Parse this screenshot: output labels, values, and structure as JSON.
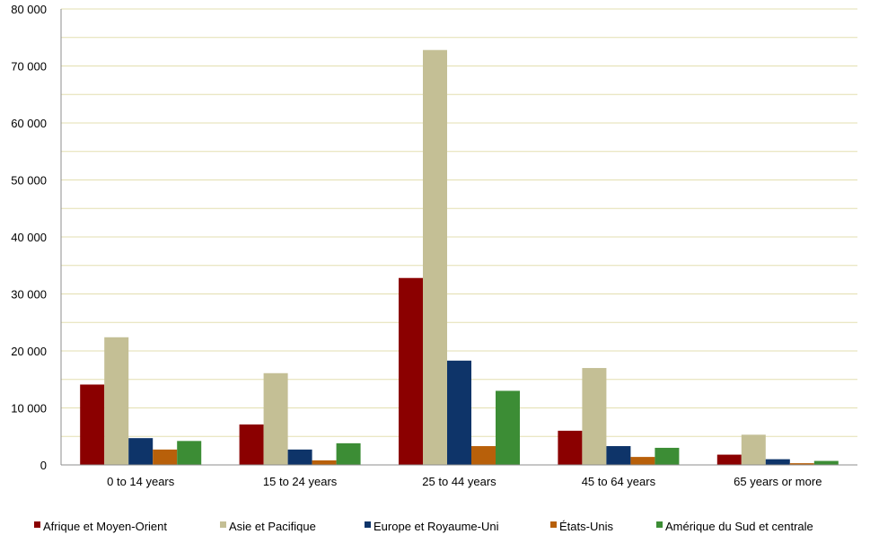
{
  "chart_data": {
    "type": "bar",
    "categories": [
      "0 to 14 years",
      "15 to 24 years",
      "25 to 44 years",
      "45 to 64 years",
      "65 years or more"
    ],
    "series": [
      {
        "name": "Afrique et Moyen-Orient",
        "color": "#8b0000",
        "values": [
          14100,
          7100,
          32800,
          6000,
          1800
        ]
      },
      {
        "name": "Asie et Pacifique",
        "color": "#c4bf95",
        "values": [
          22400,
          16100,
          72800,
          17000,
          5300
        ]
      },
      {
        "name": "Europe et Royaume-Uni",
        "color": "#0e3469",
        "values": [
          4700,
          2700,
          18300,
          3300,
          1000
        ]
      },
      {
        "name": "États-Unis",
        "color": "#b8600a",
        "values": [
          2700,
          800,
          3300,
          1400,
          300
        ]
      },
      {
        "name": "Amérique du Sud et centrale",
        "color": "#3c8d35",
        "values": [
          4200,
          3800,
          13000,
          3000,
          700
        ]
      }
    ],
    "ylim": [
      0,
      80000
    ],
    "yticks": [
      "0",
      "10 000",
      "20 000",
      "30 000",
      "40 000",
      "50 000",
      "60 000",
      "70 000",
      "80 000"
    ],
    "grid": true,
    "legend_position": "bottom"
  }
}
